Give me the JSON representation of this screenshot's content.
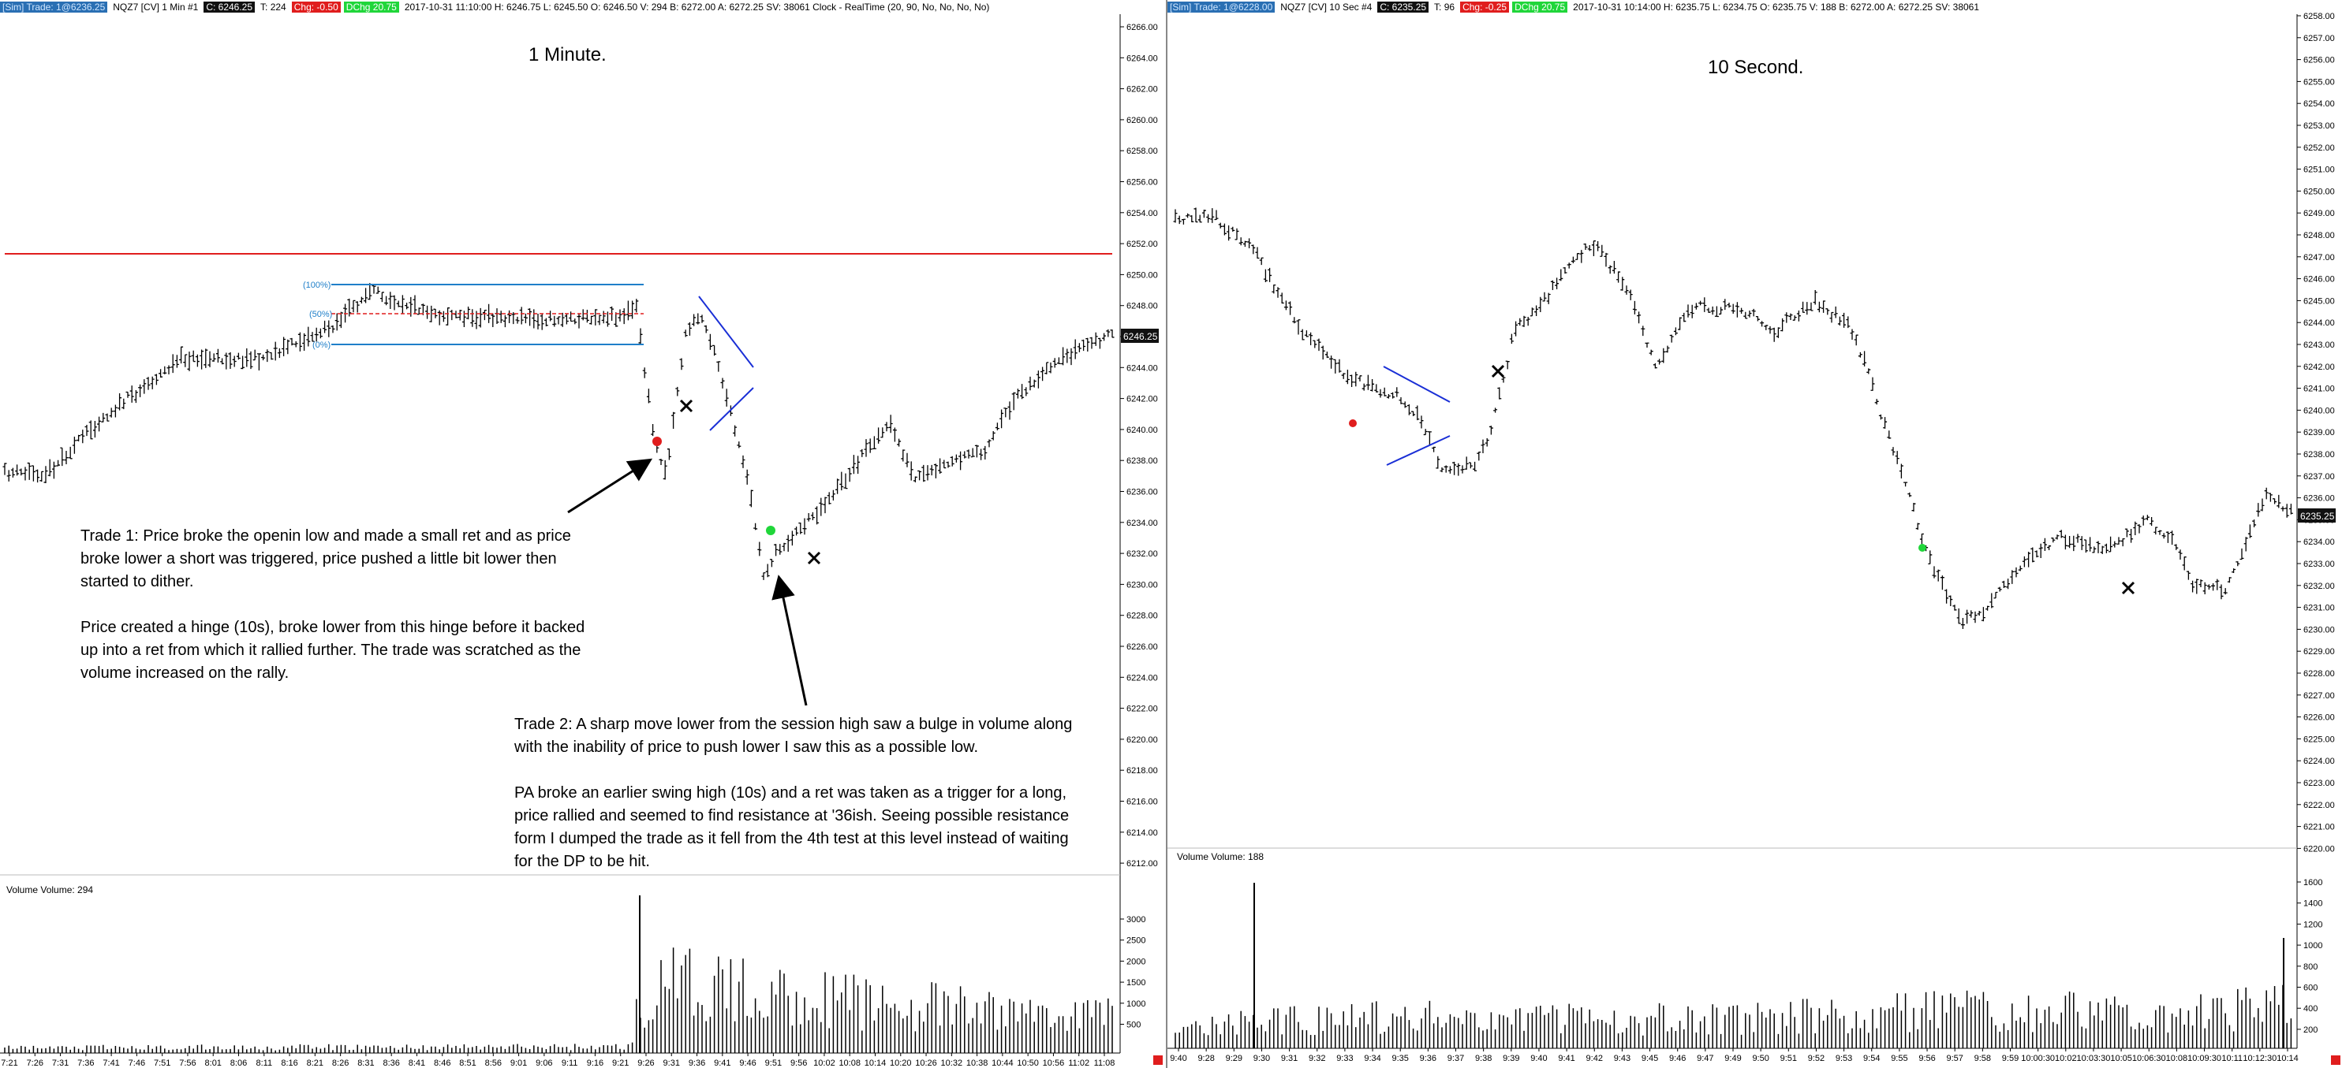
{
  "left": {
    "header": {
      "sim": "[Sim]  Trade: 1@6236.25",
      "symbol": "NQZ7 [CV]  1 Min  #1",
      "close": "C: 6246.25",
      "tick": "T: 224",
      "chg": "Chg: -0.50",
      "dchg": "DChg 20.75",
      "info": "2017-10-31 11:10:00  H: 6246.75  L: 6245.50  O: 6246.50  V: 294  B: 6272.00  A: 6272.25  SV: 38061  Clock - RealTime   (20, 90, No, No, No, No)"
    },
    "title": "1 Minute.",
    "price_label": "6246.25",
    "volume_label": "Volume  Volume: 294",
    "fib_labels": [
      "(100%)",
      "(50%)",
      "(0%)"
    ],
    "note1": [
      "Trade 1:  Price broke the openin low and made a small ret and as price broke lower a short was triggered, price pushed a little bit lower then started to dither.",
      "Price created a hinge (10s), broke lower from this hinge before it backed up into a ret from which it rallied further.  The trade was scratched as the volume increased on the rally."
    ],
    "note2": [
      "Trade 2:  A sharp move lower from the session high saw a bulge in volume along with the inability of price to push lower I saw this as a possible low.",
      "PA broke an earlier swing high (10s) and a ret was taken as a trigger for a long, price rallied and seemed to find resistance at '36ish.  Seeing possible resistance form I dumped the trade as it fell from the 4th test at this level instead of waiting for the DP to be hit."
    ],
    "price_axis": [
      "6266.00",
      "6264.00",
      "6262.00",
      "6260.00",
      "6258.00",
      "6256.00",
      "6254.00",
      "6252.00",
      "6250.00",
      "6248.00",
      "6246.00",
      "6244.00",
      "6242.00",
      "6240.00",
      "6238.00",
      "6236.00",
      "6234.00",
      "6232.00",
      "6230.00",
      "6228.00",
      "6226.00",
      "6224.00",
      "6222.00",
      "6220.00",
      "6218.00",
      "6216.00",
      "6214.00",
      "6212.00"
    ],
    "volume_axis": [
      "3000",
      "2500",
      "2000",
      "1500",
      "1000",
      "500"
    ],
    "time_axis": [
      "7:21",
      "7:26",
      "7:31",
      "7:36",
      "7:41",
      "7:46",
      "7:51",
      "7:56",
      "8:01",
      "8:06",
      "8:11",
      "8:16",
      "8:21",
      "8:26",
      "8:31",
      "8:36",
      "8:41",
      "8:46",
      "8:51",
      "8:56",
      "9:01",
      "9:06",
      "9:11",
      "9:16",
      "9:21",
      "9:26",
      "9:31",
      "9:36",
      "9:41",
      "9:46",
      "9:51",
      "9:56",
      "10:02",
      "10:08",
      "10:14",
      "10:20",
      "10:26",
      "10:32",
      "10:38",
      "10:44",
      "10:50",
      "10:56",
      "11:02",
      "11:08"
    ]
  },
  "right": {
    "header": {
      "sim": "[Sim]  Trade: 1@6228.00",
      "symbol": "NQZ7 [CV]  10 Sec  #4",
      "close": "C: 6235.25",
      "tick": "T: 96",
      "chg": "Chg: -0.25",
      "dchg": "DChg 20.75",
      "info": "2017-10-31 10:14:00  H: 6235.75  L: 6234.75  O: 6235.75  V: 188  B: 6272.00  A: 6272.25  SV: 38061"
    },
    "title": "10 Second.",
    "price_label": "6235.25",
    "volume_label": "Volume  Volume: 188",
    "price_axis": [
      "6258.00",
      "6257.00",
      "6256.00",
      "6255.00",
      "6254.00",
      "6253.00",
      "6252.00",
      "6251.00",
      "6250.00",
      "6249.00",
      "6248.00",
      "6247.00",
      "6246.00",
      "6245.00",
      "6244.00",
      "6243.00",
      "6242.00",
      "6241.00",
      "6240.00",
      "6239.00",
      "6238.00",
      "6237.00",
      "6236.00",
      "6235.00",
      "6234.00",
      "6233.00",
      "6232.00",
      "6231.00",
      "6230.00",
      "6229.00",
      "6228.00",
      "6227.00",
      "6226.00",
      "6225.00",
      "6224.00",
      "6223.00",
      "6222.00",
      "6221.00",
      "6220.00"
    ],
    "volume_axis": [
      "1600",
      "1400",
      "1200",
      "1000",
      "800",
      "600",
      "400",
      "200"
    ],
    "time_axis": [
      "9:40",
      "9:28",
      "9:29",
      "9:30",
      "9:31",
      "9:32",
      "9:33",
      "9:34",
      "9:35",
      "9:36",
      "9:37",
      "9:38",
      "9:39",
      "9:40",
      "9:41",
      "9:42",
      "9:43",
      "9:45",
      "9:46",
      "9:47",
      "9:49",
      "9:50",
      "9:51",
      "9:52",
      "9:53",
      "9:54",
      "9:55",
      "9:56",
      "9:57",
      "9:58",
      "9:59",
      "10:00:30",
      "10:02",
      "10:03:30",
      "10:05",
      "10:06:30",
      "10:08",
      "10:09:30",
      "10:11",
      "10:12:30",
      "10:14"
    ]
  },
  "colors": {
    "bar": "#000000",
    "resistance_line": "#e01d1d",
    "fib_line": "#1f7fc9",
    "triangle": "#1a2fd6",
    "short_marker": "#e01d1d",
    "long_marker": "#20d63a",
    "exit_marker": "#000000"
  }
}
